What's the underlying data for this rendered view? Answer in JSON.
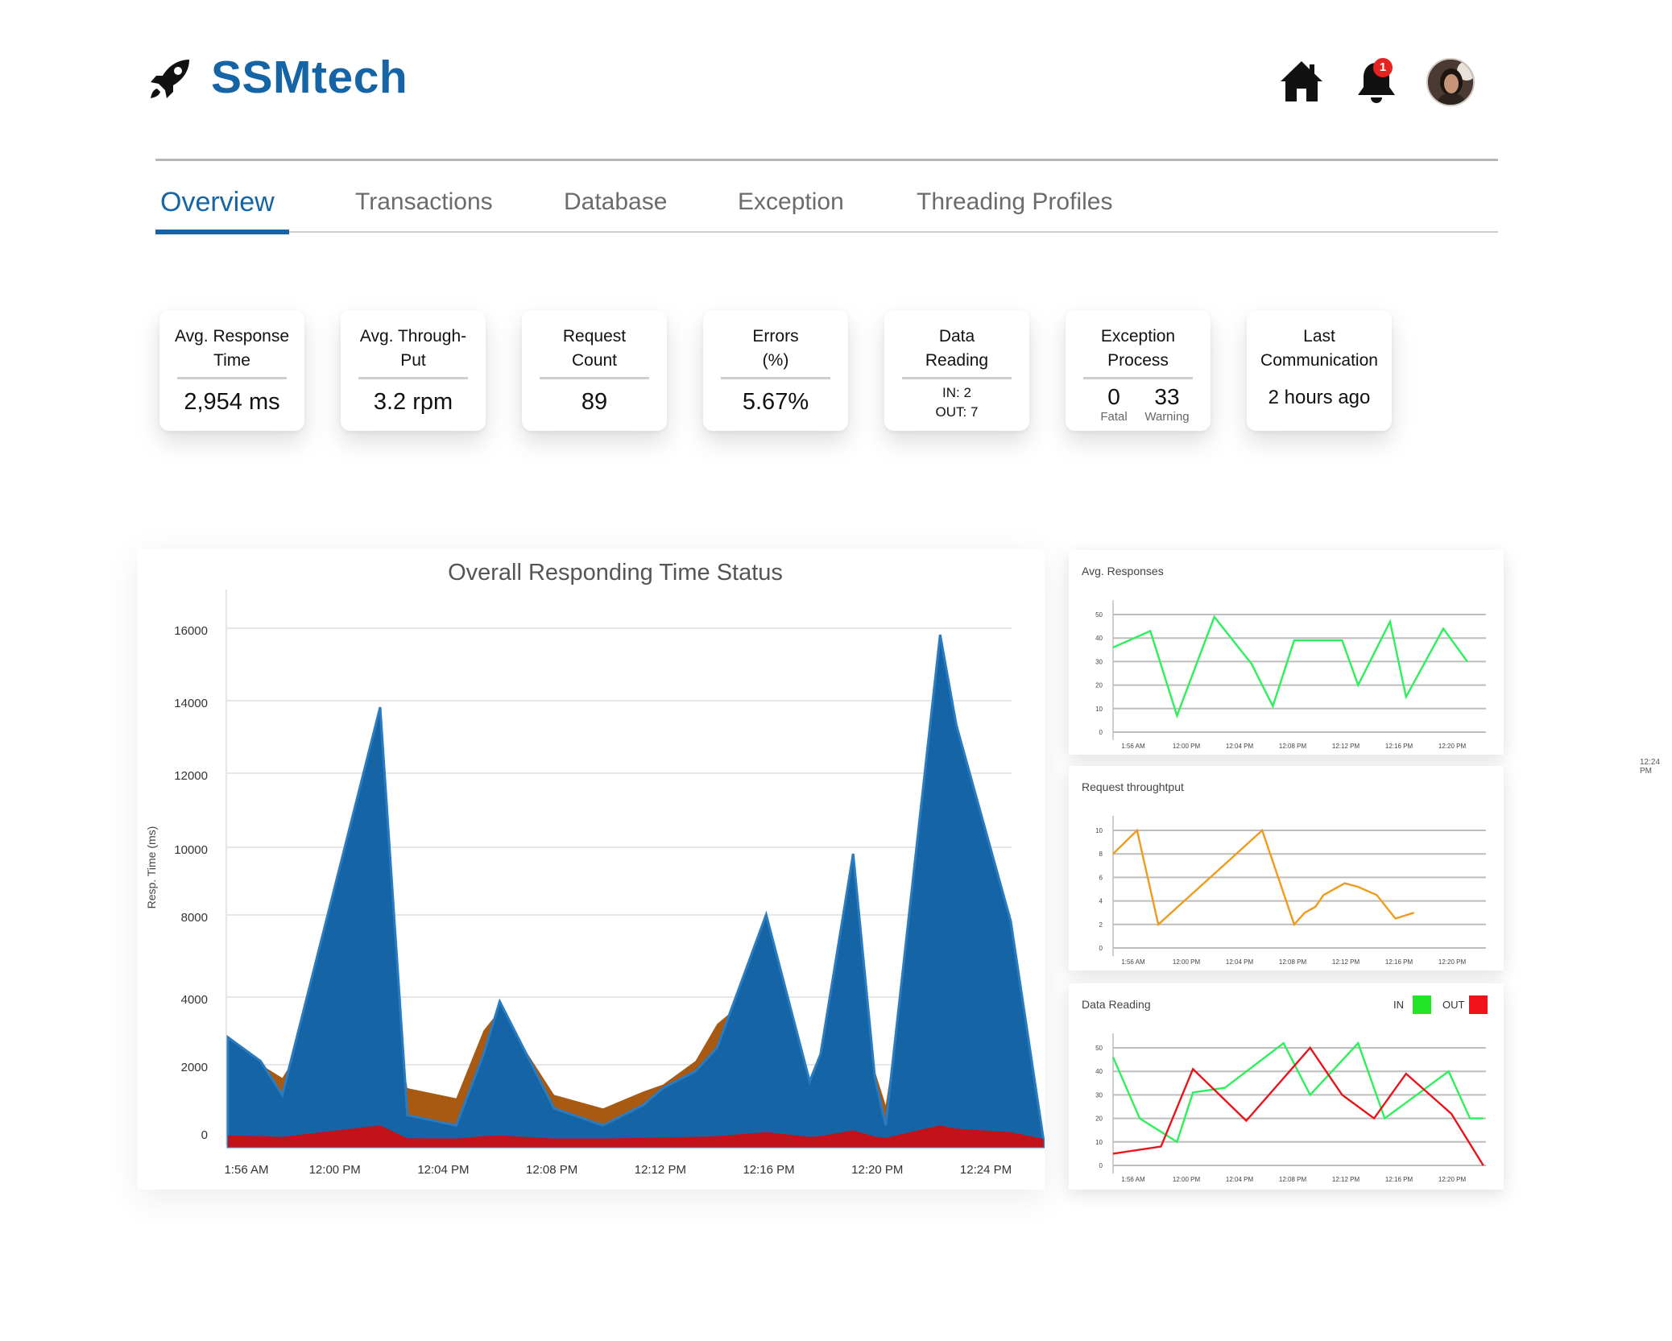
{
  "app": {
    "brand": "SSMtech",
    "logo_icon": "rocket-icon"
  },
  "header": {
    "notifications_count": "1",
    "icons": [
      "home-icon",
      "bell-icon",
      "avatar"
    ]
  },
  "tabs": [
    {
      "label": "Overview",
      "active": true
    },
    {
      "label": "Transactions",
      "active": false
    },
    {
      "label": "Database",
      "active": false
    },
    {
      "label": "Exception",
      "active": false
    },
    {
      "label": "Threading Profiles",
      "active": false
    }
  ],
  "kpis": {
    "avg_response": {
      "title_1": "Avg. Response",
      "title_2": "Time",
      "value": "2,954 ms"
    },
    "avg_throughput": {
      "title_1": "Avg. Through-",
      "title_2": "Put",
      "value": "3.2 rpm"
    },
    "request_count": {
      "title_1": "Request",
      "title_2": "Count",
      "value": "89"
    },
    "errors": {
      "title_1": "Errors",
      "title_2": "(%)",
      "value": "5.67%"
    },
    "data_reading": {
      "title_1": "Data",
      "title_2": "Reading",
      "in": "IN: 2",
      "out": "OUT: 7"
    },
    "exception_process": {
      "title_1": "Exception",
      "title_2": "Process",
      "fatal_value": "0",
      "fatal_label": "Fatal",
      "warning_value": "33",
      "warning_label": "Warning"
    },
    "last_communication": {
      "title_1": "Last",
      "title_2": "Communication",
      "value": "2 hours ago"
    }
  },
  "colors": {
    "brand": "#1565a6",
    "blue_area": "#1565a6",
    "orange_area": "#a85a12",
    "red_area": "#c4121a",
    "green": "#2ef05a",
    "orange_line": "#f29a1c",
    "red_line": "#e8141a",
    "in_legend": "#22e52a",
    "out_legend": "#f0141a"
  },
  "stray_label": "12:24 PM",
  "chart_data": [
    {
      "type": "area",
      "title": "Overall Responding Time Status",
      "ylabel": "Resp. Time (ms)",
      "xlabel": "",
      "x_ticks": [
        "1:56 AM",
        "12:00 PM",
        "12:04 PM",
        "12:08 PM",
        "12:12 PM",
        "12:16 PM",
        "12:20 PM",
        "12:24 PM"
      ],
      "y_ticks": [
        0,
        2000,
        4000,
        8000,
        10000,
        12000,
        14000,
        16000
      ],
      "x": [
        0,
        0.3,
        0.5,
        1.4,
        1.65,
        2.1,
        2.35,
        2.5,
        3.0,
        3.45,
        3.82,
        4.0,
        4.3,
        4.5,
        4.95,
        5.35,
        5.45,
        5.75,
        5.95,
        6.05,
        6.55,
        6.7,
        7.2,
        7.5
      ],
      "ylim": [
        -300,
        17000
      ],
      "grid": true,
      "series": [
        {
          "values": [
            2800,
            2200,
            1800,
            8000,
            1500,
            1200,
            3200,
            3800,
            1300,
            900,
            1400,
            1600,
            2300,
            3400,
            5000,
            1500,
            2000,
            8300,
            2000,
            1000,
            12800,
            9500,
            5000,
            0
          ]
        },
        {
          "values": [
            3000,
            2300,
            1300,
            14000,
            700,
            400,
            2500,
            4100,
            900,
            400,
            1000,
            1500,
            2000,
            2700,
            8200,
            1700,
            2500,
            10000,
            1800,
            400,
            16000,
            13500,
            8000,
            0
          ]
        },
        {
          "values": [
            100,
            80,
            60,
            400,
            20,
            10,
            80,
            100,
            10,
            10,
            30,
            40,
            60,
            80,
            200,
            60,
            80,
            250,
            70,
            30,
            400,
            300,
            200,
            0
          ]
        }
      ]
    },
    {
      "type": "line",
      "title": "Avg. Responses",
      "categories": [
        "1:56 AM",
        "12:00 PM",
        "12:04 PM",
        "12:08 PM",
        "12:12 PM",
        "12:16 PM",
        "12:20 PM"
      ],
      "x": [
        0,
        0.7,
        1.2,
        1.9,
        2.6,
        3.0,
        3.4,
        4.3,
        4.6,
        5.2,
        5.5,
        6.2,
        6.65
      ],
      "values": [
        36,
        43,
        7,
        49,
        29,
        11,
        39,
        39,
        20,
        47,
        15,
        44,
        30
      ],
      "ylim": [
        0,
        50
      ],
      "y_ticks": [
        0,
        10,
        20,
        30,
        40,
        50
      ],
      "grid": true
    },
    {
      "type": "line",
      "title": "Request throughtput",
      "categories": [
        "1:56 AM",
        "12:00 PM",
        "12:04 PM",
        "12:08 PM",
        "12:12 PM",
        "12:16 PM",
        "12:20 PM"
      ],
      "x": [
        0,
        0.45,
        0.85,
        2.8,
        3.4,
        3.6,
        3.8,
        3.95,
        4.35,
        4.6,
        4.95,
        5.3,
        5.65
      ],
      "values": [
        8,
        10,
        2,
        10,
        2,
        3,
        3.5,
        4.5,
        5.5,
        5.2,
        4.5,
        2.5,
        3
      ],
      "ylim": [
        0,
        10
      ],
      "y_ticks": [
        0,
        2,
        4,
        6,
        8,
        10
      ],
      "grid": true
    },
    {
      "type": "line",
      "title": "Data Reading",
      "categories": [
        "1:56 AM",
        "12:00 PM",
        "12:04 PM",
        "12:08 PM",
        "12:12 PM",
        "12:16 PM",
        "12:20 PM"
      ],
      "legend": "top-right",
      "ylim": [
        0,
        50
      ],
      "y_ticks": [
        0,
        10,
        20,
        30,
        40,
        50
      ],
      "grid": true,
      "series": [
        {
          "name": "IN",
          "x": [
            0,
            0.5,
            1.2,
            1.5,
            2.1,
            3.2,
            3.7,
            4.6,
            5.1,
            6.3,
            6.7,
            6.95
          ],
          "values": [
            46,
            20,
            10,
            31,
            33,
            52,
            30,
            52,
            20,
            40,
            20,
            20
          ]
        },
        {
          "name": "OUT",
          "x": [
            0,
            0.9,
            1.5,
            2.5,
            3.7,
            4.3,
            4.9,
            5.5,
            6.35,
            6.95
          ],
          "values": [
            5,
            8,
            41,
            19,
            50,
            30,
            20,
            39,
            22,
            0
          ]
        }
      ]
    }
  ]
}
